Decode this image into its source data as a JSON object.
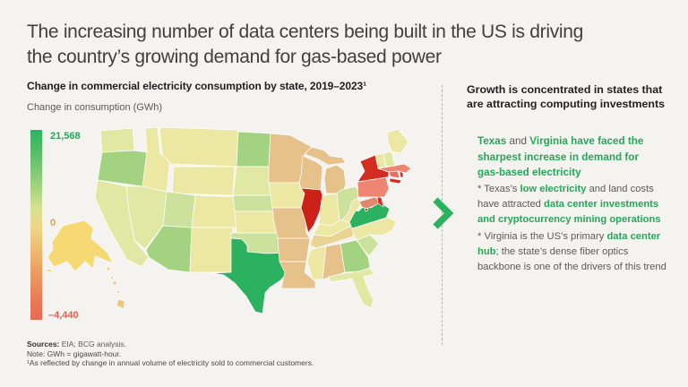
{
  "colors": {
    "background": "#F5F3EF",
    "title_text": "#3F3F3F",
    "heading_text": "#232323",
    "body_text": "#5B5B5B",
    "green_accent": "#27A65A",
    "chevron_green": "#2BB261",
    "legend_max_color": "#2BA35C",
    "legend_zero_color": "#E89B4D",
    "legend_min_color": "#E2604B",
    "divider_color": "#B9B5AD",
    "footer_text": "#4A4A4A"
  },
  "title": {
    "line1": "The increasing number of data centers being built in the US is driving",
    "line2": "the country’s growing demand for gas-based power"
  },
  "left_panel": {
    "heading": "Change in commercial electricity consumption by state, 2019–2023¹",
    "axis_label": "Change in consumption (GWh)",
    "legend": {
      "max_label": "21,568",
      "zero_label": "0",
      "min_label": "–4,440"
    }
  },
  "right_panel": {
    "heading_line1": "Growth is concentrated in states that",
    "heading_line2": "are attracting computing investments",
    "para1_lines": [
      [
        {
          "t": "Texas",
          "s": "g"
        },
        {
          "t": " and ",
          "s": "p"
        },
        {
          "t": "Virginia have faced the",
          "s": "g"
        }
      ],
      [
        {
          "t": "sharpest increase in demand for",
          "s": "g"
        }
      ],
      [
        {
          "t": "gas-based electricity",
          "s": "g"
        }
      ]
    ],
    "para2_lines": [
      [
        {
          "t": "* Texas’s ",
          "s": "p"
        },
        {
          "t": "low electricity",
          "s": "g"
        },
        {
          "t": " and land costs",
          "s": "p"
        }
      ],
      [
        {
          "t": "have attracted ",
          "s": "p"
        },
        {
          "t": "data center investments",
          "s": "g"
        }
      ],
      [
        {
          "t": "and cryptocurrency mining operations",
          "s": "g"
        }
      ]
    ],
    "para3_lines": [
      [
        {
          "t": "* Virginia is the US’s primary ",
          "s": "p"
        },
        {
          "t": "data center",
          "s": "g"
        }
      ],
      [
        {
          "t": "hub",
          "s": "g"
        },
        {
          "t": "; the state’s dense fiber optics",
          "s": "p"
        }
      ],
      [
        {
          "t": "backbone is one of the drivers of this trend",
          "s": "p"
        }
      ]
    ]
  },
  "footer": {
    "sources_line": [
      {
        "t": "Sources:",
        "s": "b"
      },
      {
        "t": " EIA; BCG analysis.",
        "s": "p"
      }
    ],
    "note_line": "Note: GWh = gigawatt-hour.",
    "footnote_line": "¹As reflected by change in annual volume of electricity sold to commercial customers."
  },
  "map_palette": {
    "strong_green": "#2BB15F",
    "light_green": "#A3D381",
    "pale_green": "#CCE19C",
    "pale_yellow_green": "#E1E8A4",
    "pale_yellow": "#EDE7A4",
    "light_tan": "#E9D494",
    "tan": "#E6C189",
    "orange_red": "#E0876C",
    "salmon": "#EE8471",
    "salmon_red": "#E4705F",
    "red": "#D32D22",
    "deep_red": "#CB2118",
    "yellow": "#F6D973",
    "tan_yellow": "#EBC87E"
  },
  "chart_data": {
    "type": "choropleth",
    "title": "Change in commercial electricity consumption by state, 2019–2023",
    "unit": "GWh",
    "colorbar": {
      "max": 21568,
      "zero": 0,
      "min": -4440,
      "orientation": "vertical",
      "top_color": "#2CB35E",
      "bottom_color": "#E56A51"
    },
    "highlights": {
      "sharpest_increase": [
        "TX",
        "VA"
      ],
      "sharpest_decline": [
        "IL",
        "NY"
      ]
    },
    "state_color_class": {
      "WA": "pale_yellow_green",
      "OR": "light_green",
      "CA": "pale_yellow_green",
      "NV": "pale_yellow_green",
      "ID": "pale_yellow",
      "MT": "pale_yellow",
      "WY": "pale_yellow",
      "UT": "pale_green",
      "CO": "pale_yellow",
      "AZ": "light_green",
      "NM": "pale_yellow",
      "ND": "light_green",
      "SD": "pale_yellow_green",
      "NE": "pale_green",
      "KS": "pale_yellow",
      "OK": "pale_green",
      "TX": "strong_green",
      "MN": "tan",
      "IA": "pale_yellow",
      "MO": "tan",
      "AR": "tan",
      "LA": "tan",
      "WI": "tan",
      "MI": "tan",
      "IL": "deep_red",
      "IN": "pale_yellow",
      "OH": "pale_green",
      "KY": "pale_yellow",
      "TN": "light_tan",
      "MS": "pale_yellow",
      "AL": "tan",
      "GA": "light_green",
      "FL": "pale_yellow_green",
      "SC": "pale_green",
      "NC": "pale_yellow",
      "VA": "strong_green",
      "WV": "pale_yellow",
      "MD": "orange_red",
      "DE": "red",
      "DC": "red",
      "NJ": "salmon_red",
      "PA": "salmon",
      "NY": "red",
      "CT": "salmon_red",
      "RI": "red",
      "MA": "salmon",
      "VT": "pale_yellow",
      "NH": "pale_yellow_green",
      "ME": "pale_yellow",
      "AK": "yellow",
      "HI": "tan_yellow"
    }
  }
}
